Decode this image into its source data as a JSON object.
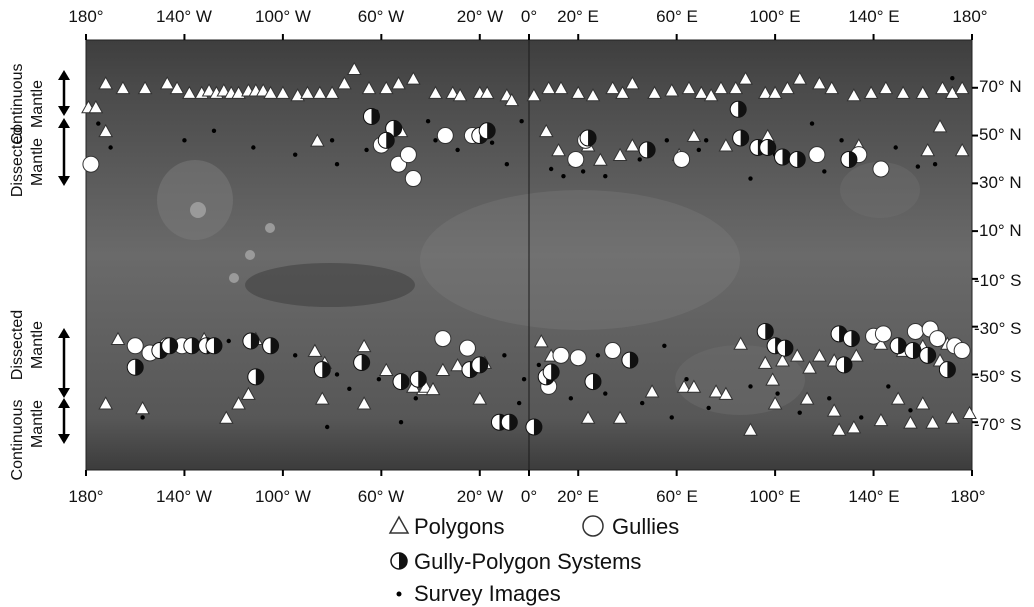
{
  "map": {
    "top_ticks": [
      "180°",
      "140° W",
      "100° W",
      "60° W",
      "20° W",
      "0°",
      "20° E",
      "60° E",
      "100° E",
      "140° E",
      "180°"
    ],
    "bottom_ticks": [
      "180°",
      "140° W",
      "100° W",
      "60° W",
      "20° W",
      "0°",
      "20° E",
      "60° E",
      "100° E",
      "140° E",
      "180°"
    ],
    "lat_ticks": [
      "70° N",
      "50° N",
      "30° N",
      "10° N",
      "-10° S",
      "-30° S",
      "-50° S",
      "-70° S"
    ],
    "left_labels": {
      "north_continuous": [
        "Continuous",
        "Mantle"
      ],
      "north_dissected": [
        "Dissected",
        "Mantle"
      ],
      "south_dissected": [
        "Dissected",
        "Mantle"
      ],
      "south_continuous": [
        "Continuous",
        "Mantle"
      ]
    }
  },
  "legend": {
    "polygons": "Polygons",
    "gullies": "Gullies",
    "gully_polygon": "Gully-Polygon Systems",
    "survey": "Survey Images"
  },
  "colors": {
    "map_base": "#5b5b5b",
    "marker_fill": "#ffffff",
    "marker_stroke": "#333333",
    "survey_dot": "#000000"
  },
  "chart_data": {
    "type": "scatter",
    "x_unit": "longitude (deg E)",
    "y_unit": "latitude (deg)",
    "xlim": [
      -180,
      180
    ],
    "ylim": [
      -90,
      90
    ],
    "series": [
      {
        "name": "Polygons",
        "points": [
          [
            -179,
            62
          ],
          [
            -176,
            62
          ],
          [
            -172,
            72
          ],
          [
            -172,
            52
          ],
          [
            -165,
            70
          ],
          [
            -156,
            70
          ],
          [
            -147,
            72
          ],
          [
            -143,
            70
          ],
          [
            -138,
            68
          ],
          [
            -133,
            68
          ],
          [
            -130,
            69
          ],
          [
            -127,
            68
          ],
          [
            -124,
            69
          ],
          [
            -121,
            68
          ],
          [
            -118,
            68
          ],
          [
            -114,
            69
          ],
          [
            -111,
            69
          ],
          [
            -108,
            69
          ],
          [
            -105,
            68
          ],
          [
            -100,
            68
          ],
          [
            -94,
            67
          ],
          [
            -90,
            68
          ],
          [
            -85,
            68
          ],
          [
            -80,
            68
          ],
          [
            -75,
            72
          ],
          [
            -71,
            78
          ],
          [
            -65,
            70
          ],
          [
            -58,
            70
          ],
          [
            -53,
            72
          ],
          [
            -47,
            74
          ],
          [
            -38,
            68
          ],
          [
            -31,
            68
          ],
          [
            -28,
            67
          ],
          [
            -20,
            68
          ],
          [
            -17,
            68
          ],
          [
            -9,
            67
          ],
          [
            -7,
            65
          ],
          [
            2,
            67
          ],
          [
            8,
            70
          ],
          [
            13,
            70
          ],
          [
            20,
            68
          ],
          [
            26,
            67
          ],
          [
            34,
            70
          ],
          [
            38,
            68
          ],
          [
            42,
            72
          ],
          [
            51,
            68
          ],
          [
            58,
            69
          ],
          [
            65,
            70
          ],
          [
            70,
            68
          ],
          [
            74,
            67
          ],
          [
            78,
            70
          ],
          [
            84,
            70
          ],
          [
            88,
            74
          ],
          [
            96,
            68
          ],
          [
            100,
            68
          ],
          [
            105,
            70
          ],
          [
            110,
            74
          ],
          [
            118,
            72
          ],
          [
            123,
            70
          ],
          [
            132,
            67
          ],
          [
            139,
            68
          ],
          [
            145,
            70
          ],
          [
            152,
            68
          ],
          [
            160,
            68
          ],
          [
            168,
            70
          ],
          [
            172,
            68
          ],
          [
            176,
            70
          ],
          [
            -86,
            48
          ],
          [
            -52,
            52
          ],
          [
            7,
            52
          ],
          [
            12,
            44
          ],
          [
            19,
            40
          ],
          [
            24,
            46
          ],
          [
            29,
            40
          ],
          [
            37,
            42
          ],
          [
            42,
            46
          ],
          [
            61,
            42
          ],
          [
            67,
            50
          ],
          [
            80,
            46
          ],
          [
            97,
            50
          ],
          [
            134,
            46
          ],
          [
            162,
            44
          ],
          [
            167,
            54
          ],
          [
            176,
            44
          ],
          [
            -167,
            -35
          ],
          [
            -132,
            -35
          ],
          [
            -111,
            -35
          ],
          [
            -87,
            -40
          ],
          [
            -83,
            -45
          ],
          [
            -67,
            -38
          ],
          [
            -58,
            -48
          ],
          [
            -47,
            -55
          ],
          [
            -43,
            -56
          ],
          [
            -35,
            -48
          ],
          [
            -29,
            -46
          ],
          [
            -18,
            -45
          ],
          [
            5,
            -36
          ],
          [
            9,
            -42
          ],
          [
            86,
            -37
          ],
          [
            96,
            -45
          ],
          [
            99,
            -52
          ],
          [
            103,
            -44
          ],
          [
            109,
            -42
          ],
          [
            114,
            -47
          ],
          [
            118,
            -42
          ],
          [
            124,
            -44
          ],
          [
            133,
            -42
          ],
          [
            143,
            -37
          ],
          [
            152,
            -40
          ],
          [
            160,
            -38
          ],
          [
            167,
            -44
          ],
          [
            170,
            -37
          ],
          [
            -172,
            -62
          ],
          [
            -157,
            -64
          ],
          [
            -123,
            -68
          ],
          [
            -118,
            -62
          ],
          [
            -114,
            -58
          ],
          [
            -84,
            -60
          ],
          [
            -67,
            -62
          ],
          [
            -42,
            -55
          ],
          [
            -39,
            -56
          ],
          [
            -20,
            -60
          ],
          [
            24,
            -68
          ],
          [
            37,
            -68
          ],
          [
            50,
            -57
          ],
          [
            63,
            -55
          ],
          [
            67,
            -55
          ],
          [
            76,
            -57
          ],
          [
            80,
            -58
          ],
          [
            90,
            -73
          ],
          [
            100,
            -62
          ],
          [
            113,
            -60
          ],
          [
            124,
            -65
          ],
          [
            126,
            -73
          ],
          [
            132,
            -72
          ],
          [
            143,
            -69
          ],
          [
            150,
            -60
          ],
          [
            155,
            -70
          ],
          [
            160,
            -62
          ],
          [
            164,
            -70
          ],
          [
            172,
            -68
          ],
          [
            179,
            -66
          ]
        ]
      },
      {
        "name": "Gullies",
        "points": [
          [
            -178,
            38
          ],
          [
            -60,
            46
          ],
          [
            -53,
            38
          ],
          [
            -49,
            42
          ],
          [
            -47,
            32
          ],
          [
            -34,
            50
          ],
          [
            -23,
            50
          ],
          [
            23,
            48
          ],
          [
            19,
            40
          ],
          [
            62,
            40
          ],
          [
            117,
            42
          ],
          [
            134,
            42
          ],
          [
            143,
            36
          ],
          [
            -160,
            -38
          ],
          [
            -154,
            -41
          ],
          [
            -147,
            -38
          ],
          [
            -141,
            -38
          ],
          [
            -35,
            -35
          ],
          [
            -25,
            -39
          ],
          [
            13,
            -42
          ],
          [
            20,
            -43
          ],
          [
            34,
            -40
          ],
          [
            140,
            -34
          ],
          [
            144,
            -33
          ],
          [
            157,
            -32
          ],
          [
            163,
            -31
          ],
          [
            166,
            -35
          ],
          [
            173,
            -38
          ],
          [
            176,
            -40
          ],
          [
            8,
            -55
          ]
        ]
      },
      {
        "name": "Gully-Polygon Systems",
        "points": [
          [
            -64,
            58
          ],
          [
            -55,
            53
          ],
          [
            -58,
            48
          ],
          [
            -20,
            50
          ],
          [
            -17,
            52
          ],
          [
            24,
            49
          ],
          [
            48,
            44
          ],
          [
            85,
            61
          ],
          [
            86,
            49
          ],
          [
            93,
            45
          ],
          [
            97,
            45
          ],
          [
            103,
            41
          ],
          [
            109,
            40
          ],
          [
            130,
            40
          ],
          [
            -160,
            -47
          ],
          [
            -150,
            -40
          ],
          [
            -146,
            -38
          ],
          [
            -137,
            -38
          ],
          [
            -131,
            -38
          ],
          [
            -128,
            -38
          ],
          [
            -113,
            -36
          ],
          [
            -105,
            -38
          ],
          [
            -111,
            -51
          ],
          [
            -84,
            -48
          ],
          [
            -68,
            -45
          ],
          [
            -52,
            -53
          ],
          [
            -45,
            -52
          ],
          [
            -24,
            -48
          ],
          [
            -20,
            -46
          ],
          [
            -12,
            -70
          ],
          [
            -8,
            -70
          ],
          [
            2,
            -72
          ],
          [
            7,
            -51
          ],
          [
            9,
            -49
          ],
          [
            26,
            -53
          ],
          [
            41,
            -44
          ],
          [
            96,
            -32
          ],
          [
            100,
            -38
          ],
          [
            104,
            -39
          ],
          [
            126,
            -33
          ],
          [
            128,
            -46
          ],
          [
            131,
            -35
          ],
          [
            150,
            -38
          ],
          [
            156,
            -40
          ],
          [
            162,
            -42
          ],
          [
            170,
            -48
          ]
        ]
      },
      {
        "name": "Survey Images",
        "points": [
          [
            -175,
            55
          ],
          [
            -170,
            45
          ],
          [
            -140,
            48
          ],
          [
            -128,
            52
          ],
          [
            -112,
            45
          ],
          [
            -95,
            42
          ],
          [
            -80,
            48
          ],
          [
            -78,
            38
          ],
          [
            -66,
            44
          ],
          [
            -62,
            60
          ],
          [
            -41,
            56
          ],
          [
            -38,
            48
          ],
          [
            -29,
            44
          ],
          [
            -15,
            47
          ],
          [
            -9,
            38
          ],
          [
            -3,
            56
          ],
          [
            9,
            36
          ],
          [
            14,
            33
          ],
          [
            22,
            35
          ],
          [
            31,
            33
          ],
          [
            45,
            40
          ],
          [
            56,
            48
          ],
          [
            69,
            44
          ],
          [
            72,
            48
          ],
          [
            90,
            32
          ],
          [
            100,
            42
          ],
          [
            115,
            55
          ],
          [
            120,
            35
          ],
          [
            127,
            48
          ],
          [
            136,
            43
          ],
          [
            149,
            45
          ],
          [
            158,
            37
          ],
          [
            165,
            38
          ],
          [
            172,
            74
          ],
          [
            -122,
            -36
          ],
          [
            -95,
            -42
          ],
          [
            -78,
            -50
          ],
          [
            -61,
            -52
          ],
          [
            -46,
            -60
          ],
          [
            -10,
            -42
          ],
          [
            -2,
            -52
          ],
          [
            4,
            -46
          ],
          [
            28,
            -42
          ],
          [
            31,
            -58
          ],
          [
            46,
            -62
          ],
          [
            55,
            -38
          ],
          [
            64,
            -52
          ],
          [
            73,
            -64
          ],
          [
            90,
            -55
          ],
          [
            101,
            -58
          ],
          [
            110,
            -66
          ],
          [
            122,
            -60
          ],
          [
            135,
            -68
          ],
          [
            146,
            -55
          ],
          [
            155,
            -65
          ],
          [
            -157,
            -68
          ],
          [
            -82,
            -72
          ],
          [
            -73,
            -56
          ],
          [
            -52,
            -70
          ],
          [
            -4,
            -62
          ],
          [
            17,
            -60
          ],
          [
            58,
            -68
          ]
        ]
      }
    ]
  }
}
